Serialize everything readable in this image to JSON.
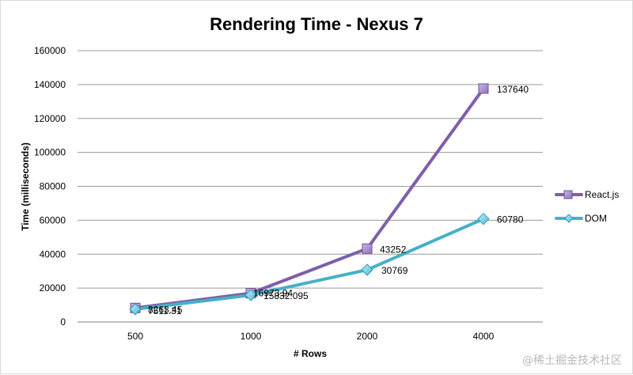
{
  "watermark": "@稀土掘金技术社区",
  "chart_data": {
    "type": "line",
    "title": "Rendering Time - Nexus 7",
    "xlabel": "# Rows",
    "ylabel": "Time (milliseconds)",
    "categories": [
      "500",
      "1000",
      "2000",
      "4000"
    ],
    "ylim": [
      0,
      160000
    ],
    "yticks": [
      0,
      20000,
      40000,
      60000,
      80000,
      100000,
      120000,
      140000,
      160000
    ],
    "grid": true,
    "legend_position": "right",
    "series": [
      {
        "name": "React.js",
        "values": [
          8263.45,
          16973.94,
          43252,
          137640
        ],
        "labels": [
          "8263.45",
          "16973.94",
          "43252",
          "137640"
        ],
        "color": "#7e5fa9",
        "marker": "square"
      },
      {
        "name": "DOM",
        "values": [
          7511.31,
          15832.095,
          30769,
          60780
        ],
        "labels": [
          "7511.31",
          "15832.095",
          "30769",
          "60780"
        ],
        "color": "#45b0c9",
        "marker": "diamond"
      }
    ]
  }
}
